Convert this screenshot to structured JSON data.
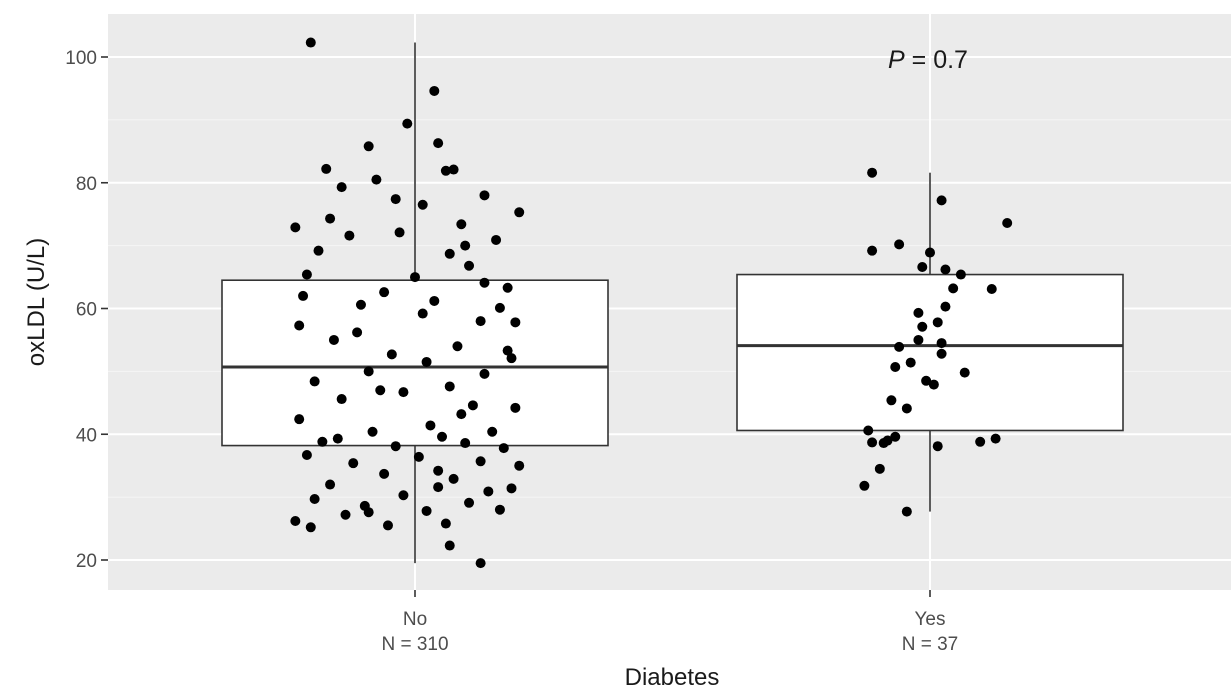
{
  "chart_data": {
    "type": "box",
    "xlabel": "Diabetes",
    "ylabel": "oxLDL (U/L)",
    "ylim": [
      15,
      105
    ],
    "yticks": [
      "20",
      "40",
      "60",
      "80",
      "100"
    ],
    "grid": true,
    "annotation": {
      "prefix": "P",
      "text": " = 0.7"
    },
    "groups": [
      {
        "category": "No",
        "n_label": "N = 310",
        "box": {
          "whisker_low": 19.5,
          "q1": 38.2,
          "median": 50.7,
          "q3": 64.5,
          "whisker_high": 102.3
        },
        "points": [
          [
            -0.27,
            102.3
          ],
          [
            0.05,
            94.6
          ],
          [
            -0.02,
            89.4
          ],
          [
            0.06,
            86.3
          ],
          [
            -0.23,
            82.2
          ],
          [
            0.08,
            81.9
          ],
          [
            0.1,
            82.1
          ],
          [
            -0.12,
            85.8
          ],
          [
            -0.19,
            79.3
          ],
          [
            0.02,
            76.5
          ],
          [
            0.18,
            78.0
          ],
          [
            -0.1,
            80.5
          ],
          [
            -0.31,
            72.9
          ],
          [
            -0.17,
            71.6
          ],
          [
            0.21,
            70.9
          ],
          [
            0.12,
            73.4
          ],
          [
            -0.04,
            72.1
          ],
          [
            0.09,
            68.7
          ],
          [
            -0.25,
            69.2
          ],
          [
            0.24,
            63.3
          ],
          [
            -0.28,
            65.4
          ],
          [
            0.14,
            66.8
          ],
          [
            0.0,
            65.0
          ],
          [
            -0.08,
            62.6
          ],
          [
            0.22,
            60.1
          ],
          [
            -0.14,
            60.6
          ],
          [
            0.05,
            61.2
          ],
          [
            -0.3,
            57.3
          ],
          [
            0.17,
            58.0
          ],
          [
            0.26,
            57.8
          ],
          [
            -0.21,
            55.0
          ],
          [
            0.11,
            54.0
          ],
          [
            -0.06,
            52.7
          ],
          [
            0.25,
            52.1
          ],
          [
            0.03,
            51.5
          ],
          [
            -0.12,
            50.0
          ],
          [
            0.18,
            49.6
          ],
          [
            -0.26,
            48.4
          ],
          [
            0.09,
            47.6
          ],
          [
            -0.03,
            46.7
          ],
          [
            0.15,
            44.6
          ],
          [
            -0.19,
            45.6
          ],
          [
            0.26,
            44.2
          ],
          [
            -0.3,
            42.4
          ],
          [
            0.04,
            41.4
          ],
          [
            0.2,
            40.4
          ],
          [
            -0.11,
            40.4
          ],
          [
            0.07,
            39.6
          ],
          [
            -0.24,
            38.8
          ],
          [
            0.13,
            38.6
          ],
          [
            -0.05,
            38.1
          ],
          [
            0.23,
            37.8
          ],
          [
            -0.28,
            36.7
          ],
          [
            0.01,
            36.4
          ],
          [
            0.17,
            35.7
          ],
          [
            -0.16,
            35.4
          ],
          [
            0.27,
            35.0
          ],
          [
            -0.08,
            33.7
          ],
          [
            0.1,
            32.9
          ],
          [
            -0.22,
            32.0
          ],
          [
            0.06,
            31.6
          ],
          [
            0.19,
            30.9
          ],
          [
            -0.03,
            30.3
          ],
          [
            -0.26,
            29.7
          ],
          [
            0.14,
            29.1
          ],
          [
            -0.13,
            28.6
          ],
          [
            0.03,
            27.8
          ],
          [
            0.22,
            28.0
          ],
          [
            -0.18,
            27.2
          ],
          [
            -0.31,
            26.2
          ],
          [
            0.08,
            25.8
          ],
          [
            -0.07,
            25.5
          ],
          [
            -0.27,
            25.2
          ],
          [
            0.09,
            22.3
          ],
          [
            0.17,
            19.5
          ],
          [
            -0.22,
            74.3
          ],
          [
            0.27,
            75.3
          ],
          [
            -0.05,
            77.4
          ],
          [
            0.13,
            70.0
          ],
          [
            -0.29,
            62.0
          ],
          [
            0.18,
            64.1
          ],
          [
            0.02,
            59.2
          ],
          [
            -0.15,
            56.2
          ],
          [
            0.24,
            53.3
          ],
          [
            -0.09,
            47.0
          ],
          [
            0.12,
            43.2
          ],
          [
            -0.2,
            39.3
          ],
          [
            0.06,
            34.2
          ],
          [
            0.25,
            31.4
          ],
          [
            -0.12,
            27.6
          ]
        ]
      },
      {
        "category": "Yes",
        "n_label": "N = 37",
        "box": {
          "whisker_low": 27.7,
          "q1": 40.6,
          "median": 54.1,
          "q3": 65.4,
          "whisker_high": 81.6
        },
        "points": [
          [
            -0.15,
            81.6
          ],
          [
            0.03,
            77.2
          ],
          [
            0.2,
            73.6
          ],
          [
            -0.08,
            70.2
          ],
          [
            -0.15,
            69.2
          ],
          [
            0.0,
            68.9
          ],
          [
            -0.02,
            66.6
          ],
          [
            0.04,
            66.2
          ],
          [
            0.08,
            65.4
          ],
          [
            0.06,
            63.2
          ],
          [
            0.16,
            63.1
          ],
          [
            0.04,
            60.3
          ],
          [
            -0.03,
            59.3
          ],
          [
            0.02,
            57.8
          ],
          [
            -0.02,
            57.1
          ],
          [
            -0.03,
            55.0
          ],
          [
            0.03,
            54.5
          ],
          [
            -0.08,
            53.9
          ],
          [
            -0.05,
            51.4
          ],
          [
            0.03,
            52.8
          ],
          [
            -0.09,
            50.7
          ],
          [
            0.09,
            49.8
          ],
          [
            -0.01,
            48.5
          ],
          [
            0.01,
            47.9
          ],
          [
            -0.1,
            45.4
          ],
          [
            -0.06,
            44.1
          ],
          [
            -0.16,
            40.6
          ],
          [
            -0.09,
            39.6
          ],
          [
            -0.15,
            38.7
          ],
          [
            0.02,
            38.1
          ],
          [
            -0.12,
            38.6
          ],
          [
            -0.11,
            39.0
          ],
          [
            0.17,
            39.3
          ],
          [
            -0.17,
            31.8
          ],
          [
            -0.06,
            27.7
          ],
          [
            0.13,
            38.8
          ],
          [
            -0.13,
            34.5
          ]
        ]
      }
    ]
  }
}
